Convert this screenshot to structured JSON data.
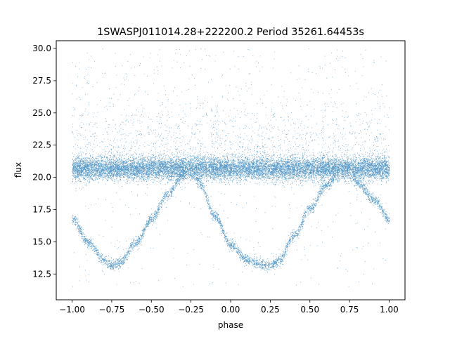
{
  "chart_data": {
    "type": "scatter",
    "title": "1SWASPJ011014.28+222200.2 Period 35261.64453s",
    "xlabel": "phase",
    "ylabel": "flux",
    "xlim": [
      -1.1,
      1.1
    ],
    "ylim": [
      10.5,
      30.6
    ],
    "xticks": [
      -1.0,
      -0.75,
      -0.5,
      -0.25,
      0.0,
      0.25,
      0.5,
      0.75,
      1.0
    ],
    "xtick_labels": [
      "−1.00",
      "−0.75",
      "−0.50",
      "−0.25",
      "0.00",
      "0.25",
      "0.50",
      "0.75",
      "1.00"
    ],
    "yticks": [
      12.5,
      15.0,
      17.5,
      20.0,
      22.5,
      25.0,
      27.5,
      30.0
    ],
    "ytick_labels": [
      "12.5",
      "15.0",
      "17.5",
      "20.0",
      "22.5",
      "25.0",
      "27.5",
      "30.0"
    ],
    "grid": false,
    "marker_color": "#1f77b4",
    "series": [
      {
        "description_values": "baseline band",
        "phase_range": [
          -1.0,
          1.0
        ],
        "flux_center": 20.7,
        "flux_spread": 0.8
      },
      {
        "description_values": "eclipse curve",
        "phase": [
          -1.0,
          -0.9,
          -0.8,
          -0.75,
          -0.7,
          -0.6,
          -0.5,
          -0.4,
          -0.3,
          -0.25,
          -0.2,
          -0.1,
          0.0,
          0.1,
          0.2,
          0.25,
          0.3,
          0.4,
          0.5,
          0.6,
          0.7,
          0.75,
          0.8,
          0.9,
          1.0
        ],
        "flux": [
          16.8,
          15.0,
          13.6,
          13.2,
          13.4,
          14.9,
          16.8,
          18.7,
          20.2,
          20.6,
          19.6,
          17.0,
          14.8,
          13.6,
          13.2,
          13.2,
          13.5,
          15.5,
          17.6,
          19.4,
          20.6,
          20.7,
          19.6,
          18.3,
          16.8
        ]
      }
    ]
  }
}
